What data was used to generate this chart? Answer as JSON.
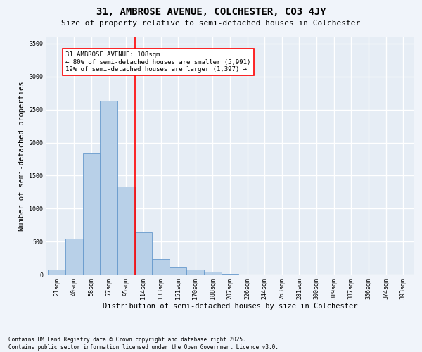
{
  "title": "31, AMBROSE AVENUE, COLCHESTER, CO3 4JY",
  "subtitle": "Size of property relative to semi-detached houses in Colchester",
  "xlabel": "Distribution of semi-detached houses by size in Colchester",
  "ylabel": "Number of semi-detached properties",
  "categories": [
    "21sqm",
    "40sqm",
    "58sqm",
    "77sqm",
    "95sqm",
    "114sqm",
    "133sqm",
    "151sqm",
    "170sqm",
    "188sqm",
    "207sqm",
    "226sqm",
    "244sqm",
    "263sqm",
    "281sqm",
    "300sqm",
    "319sqm",
    "337sqm",
    "356sqm",
    "374sqm",
    "393sqm"
  ],
  "values": [
    80,
    540,
    1840,
    2640,
    1330,
    640,
    230,
    115,
    70,
    40,
    15,
    5,
    5,
    2,
    0,
    0,
    0,
    0,
    0,
    0,
    0
  ],
  "bar_color": "#b8d0e8",
  "bar_edge_color": "#6699cc",
  "annotation_text": "31 AMBROSE AVENUE: 108sqm\n← 80% of semi-detached houses are smaller (5,991)\n19% of semi-detached houses are larger (1,397) →",
  "ylim": [
    0,
    3600
  ],
  "yticks": [
    0,
    500,
    1000,
    1500,
    2000,
    2500,
    3000,
    3500
  ],
  "footnote": "Contains HM Land Registry data © Crown copyright and database right 2025.\nContains public sector information licensed under the Open Government Licence v3.0.",
  "background_color": "#f0f4fa",
  "plot_background_color": "#e6edf5",
  "grid_color": "#ffffff",
  "title_fontsize": 10,
  "subtitle_fontsize": 8,
  "axis_label_fontsize": 7.5,
  "tick_fontsize": 6,
  "annotation_fontsize": 6.5,
  "footnote_fontsize": 5.5
}
